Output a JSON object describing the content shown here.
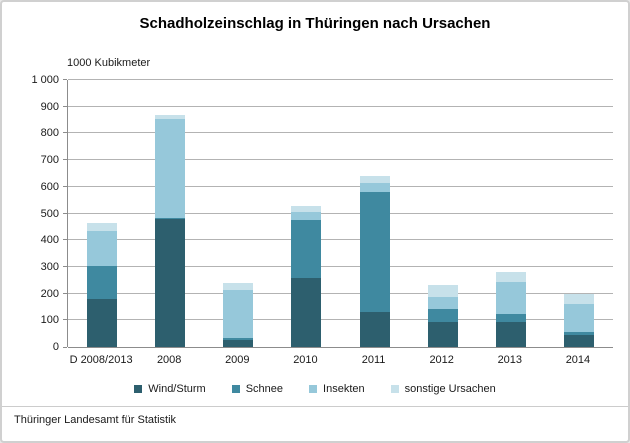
{
  "chart": {
    "title": "Schadholzeinschlag in Thüringen nach Ursachen",
    "unit_label": "1000 Kubikmeter",
    "source": "Thüringer Landesamt für Statistik"
  },
  "chart_data": {
    "type": "bar",
    "stacked": true,
    "title": "Schadholzeinschlag in Thüringen nach Ursachen",
    "ylabel": "1000 Kubikmeter",
    "xlabel": "",
    "ylim": [
      0,
      1000
    ],
    "grid": true,
    "legend_position": "bottom",
    "yticks": [
      {
        "value": 0,
        "label": "0"
      },
      {
        "value": 100,
        "label": "100"
      },
      {
        "value": 200,
        "label": "200"
      },
      {
        "value": 300,
        "label": "300"
      },
      {
        "value": 400,
        "label": "400"
      },
      {
        "value": 500,
        "label": "500"
      },
      {
        "value": 600,
        "label": "600"
      },
      {
        "value": 700,
        "label": "700"
      },
      {
        "value": 800,
        "label": "800"
      },
      {
        "value": 900,
        "label": "900"
      },
      {
        "value": 1000,
        "label": "1 000"
      }
    ],
    "categories": [
      "D 2008/2013",
      "2008",
      "2009",
      "2010",
      "2011",
      "2012",
      "2013",
      "2014"
    ],
    "series": [
      {
        "name": "Wind/Sturm",
        "color": "#2d5f6e",
        "values": [
          178,
          478,
          28,
          259,
          130,
          94,
          94,
          44
        ]
      },
      {
        "name": "Schnee",
        "color": "#3f89a0",
        "values": [
          127,
          5,
          5,
          216,
          452,
          50,
          30,
          12
        ]
      },
      {
        "name": "Insekten",
        "color": "#96c8da",
        "values": [
          131,
          372,
          180,
          30,
          33,
          45,
          120,
          106
        ]
      },
      {
        "name": "sonstige Ursachen",
        "color": "#c7e1ea",
        "values": [
          28,
          13,
          25,
          25,
          24,
          42,
          38,
          38
        ]
      }
    ],
    "totals": [
      464,
      868,
      238,
      530,
      639,
      231,
      282,
      200
    ]
  }
}
